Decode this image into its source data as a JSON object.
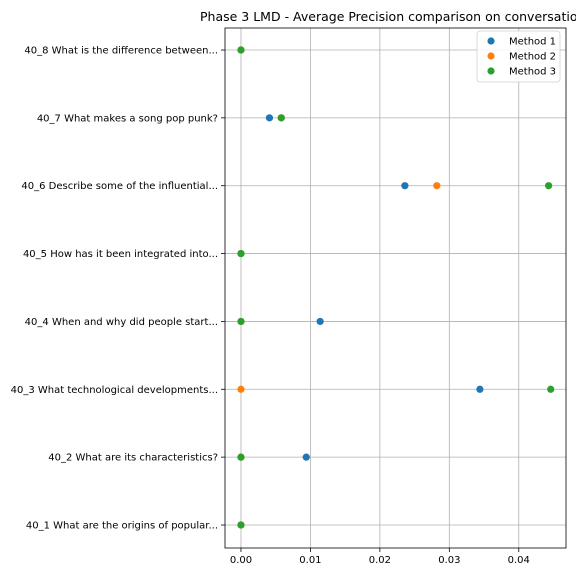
{
  "chart_data": {
    "type": "scatter",
    "title": "Phase 3 LMD - Average Precision comparison on conversation 40",
    "xlabel": "",
    "ylabel": "",
    "xlim": [
      -0.0023,
      0.0468
    ],
    "x_ticks": [
      0.0,
      0.01,
      0.02,
      0.03,
      0.04
    ],
    "x_tick_labels": [
      "0.00",
      "0.01",
      "0.02",
      "0.03",
      "0.04"
    ],
    "categories": [
      "40_1 What are the origins of popular...",
      "40_2 What are its characteristics?",
      "40_3 What technological developments...",
      "40_4 When and why did people start...",
      "40_5 How has it been integrated into...",
      "40_6 Describe some of the influential...",
      "40_7 What makes a song pop punk?",
      "40_8 What is the difference between..."
    ],
    "grid": true,
    "legend_position": "top-right",
    "series": [
      {
        "name": "Method 1",
        "color": "#1f77b4",
        "values": [
          0.0,
          0.0094,
          0.0344,
          0.0114,
          0.0,
          0.0236,
          0.0041,
          0.0
        ]
      },
      {
        "name": "Method 2",
        "color": "#ff7f0e",
        "values": [
          0.0,
          0.0,
          0.0,
          0.0,
          0.0,
          0.0282,
          0.0058,
          0.0
        ]
      },
      {
        "name": "Method 3",
        "color": "#2ca02c",
        "values": [
          0.0,
          0.0,
          0.0446,
          0.0,
          0.0,
          0.0443,
          0.0058,
          0.0
        ]
      }
    ]
  }
}
